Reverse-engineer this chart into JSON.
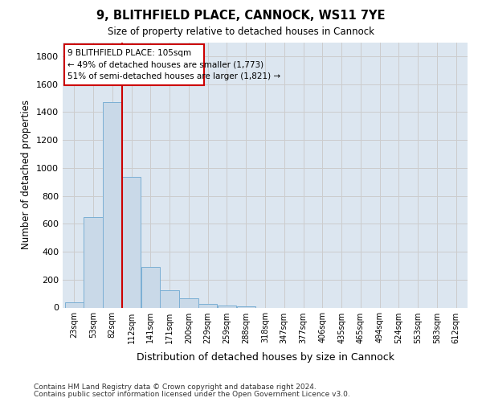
{
  "title1": "9, BLITHFIELD PLACE, CANNOCK, WS11 7YE",
  "title2": "Size of property relative to detached houses in Cannock",
  "xlabel": "Distribution of detached houses by size in Cannock",
  "ylabel": "Number of detached properties",
  "bin_labels": [
    "23sqm",
    "53sqm",
    "82sqm",
    "112sqm",
    "141sqm",
    "171sqm",
    "200sqm",
    "229sqm",
    "259sqm",
    "288sqm",
    "318sqm",
    "347sqm",
    "377sqm",
    "406sqm",
    "435sqm",
    "465sqm",
    "494sqm",
    "524sqm",
    "553sqm",
    "583sqm",
    "612sqm"
  ],
  "bar_values": [
    40,
    650,
    1470,
    935,
    290,
    125,
    65,
    25,
    15,
    10,
    0,
    0,
    0,
    0,
    0,
    0,
    0,
    0,
    0,
    0,
    0
  ],
  "bar_color": "#c9d9e8",
  "bar_edge_color": "#7bafd4",
  "vline_color": "#cc0000",
  "annotation_line1": "9 BLITHFIELD PLACE: 105sqm",
  "annotation_line2": "← 49% of detached houses are smaller (1,773)",
  "annotation_line3": "51% of semi-detached houses are larger (1,821) →",
  "annotation_box_color": "#cc0000",
  "ylim": [
    0,
    1900
  ],
  "yticks": [
    0,
    200,
    400,
    600,
    800,
    1000,
    1200,
    1400,
    1600,
    1800
  ],
  "grid_color": "#cccccc",
  "bg_color": "#dce6f0",
  "footer1": "Contains HM Land Registry data © Crown copyright and database right 2024.",
  "footer2": "Contains public sector information licensed under the Open Government Licence v3.0."
}
